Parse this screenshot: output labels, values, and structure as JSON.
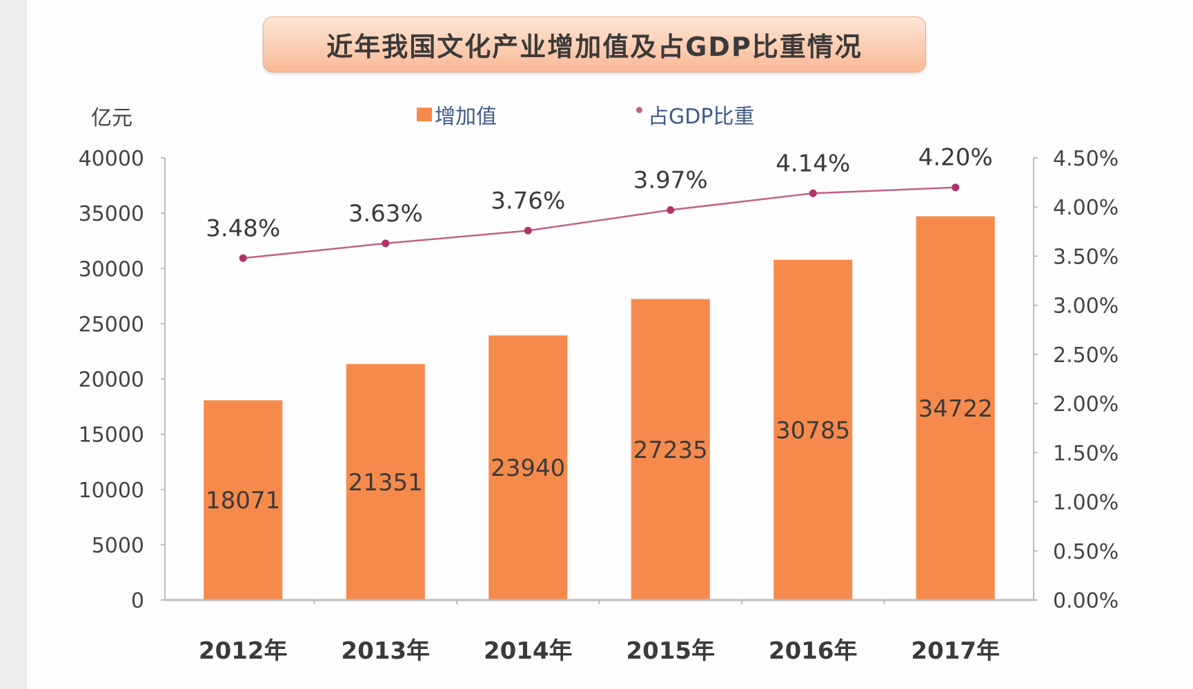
{
  "chart_data": {
    "type": "bar+line",
    "title": "近年我国文化产业增加值及占GDP比重情况",
    "ylabel": "亿元",
    "categories": [
      "2012年",
      "2013年",
      "2014年",
      "2015年",
      "2016年",
      "2017年"
    ],
    "series": [
      {
        "name": "增加值",
        "type": "bar",
        "axis": "left",
        "values": [
          18071,
          21351,
          23940,
          27235,
          30785,
          34722
        ],
        "labels": [
          "18071",
          "21351",
          "23940",
          "27235",
          "30785",
          "34722"
        ],
        "color": "#f68a4c"
      },
      {
        "name": "占GDP比重",
        "type": "line",
        "axis": "right",
        "values": [
          3.48,
          3.63,
          3.76,
          3.97,
          4.14,
          4.2
        ],
        "labels": [
          "3.48%",
          "3.63%",
          "3.76%",
          "3.97%",
          "4.14%",
          "4.20%"
        ],
        "color": "#c45f86"
      }
    ],
    "ylim": [
      0,
      40000
    ],
    "yticks": [
      "0",
      "5000",
      "10000",
      "15000",
      "20000",
      "25000",
      "30000",
      "35000",
      "40000"
    ],
    "y2lim": [
      0,
      4.5
    ],
    "y2ticks": [
      "0.00%",
      "0.50%",
      "1.00%",
      "1.50%",
      "2.00%",
      "2.50%",
      "3.00%",
      "3.50%",
      "4.00%",
      "4.50%"
    ],
    "grid": false,
    "legend": "top"
  }
}
